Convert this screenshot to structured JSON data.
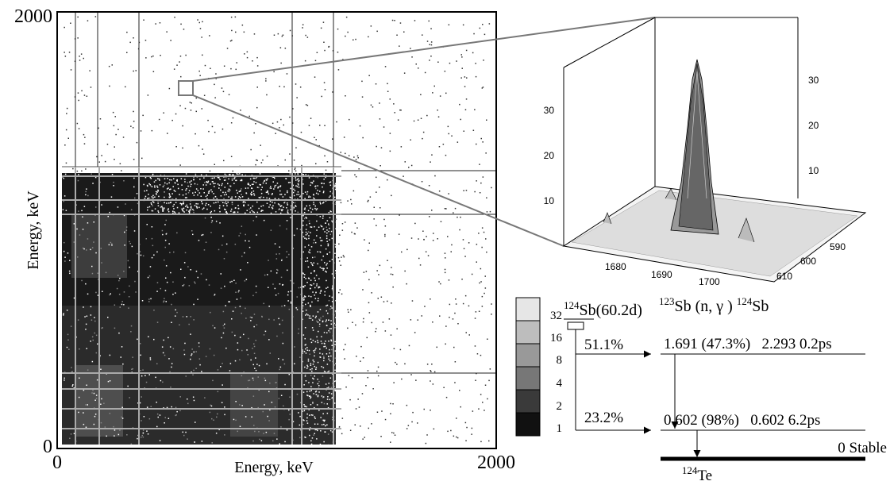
{
  "matrix": {
    "x_label": "Energy, keV",
    "y_label": "Energy, keV",
    "x_ticks": [
      "0",
      "2000"
    ],
    "y_ticks": [
      "0",
      "2000"
    ]
  },
  "surface": {
    "z_ticks_left": [
      "10",
      "20",
      "30"
    ],
    "z_ticks_right": [
      "10",
      "20",
      "30"
    ],
    "x_ticks": [
      "1680",
      "1690",
      "1700"
    ],
    "y_ticks": [
      "590",
      "600",
      "610"
    ]
  },
  "scale": {
    "levels": [
      "32",
      "16",
      "8",
      "4",
      "2",
      "1"
    ]
  },
  "decay": {
    "parent_mass": "124",
    "parent_name": "Sb(60.2d)",
    "reaction_target_mass": "123",
    "reaction": "Sb (n, γ )",
    "reaction_product_mass": "124",
    "reaction_product": "Sb",
    "branches": [
      "51.1%",
      "23.2%"
    ],
    "levels": [
      "1.691 (47.3%)   2.293 0.2ps",
      "0.602 (98%)   0.602 6.2ps",
      "0 Stable"
    ],
    "daughter_mass": "124",
    "daughter_name": "Te"
  }
}
